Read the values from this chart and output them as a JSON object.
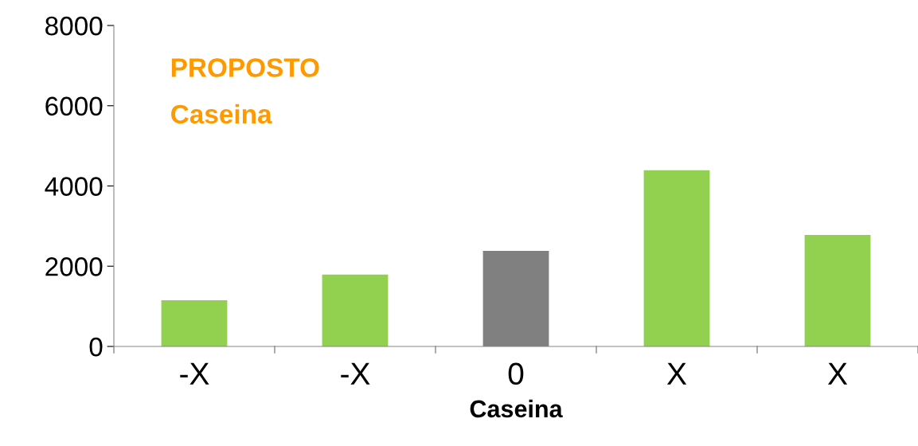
{
  "chart_data": {
    "type": "bar",
    "categories": [
      "-X",
      "-X",
      "0",
      "X",
      "X"
    ],
    "values": [
      1150,
      1790,
      2380,
      4390,
      2780
    ],
    "colors": [
      "#92d050",
      "#92d050",
      "#808080",
      "#92d050",
      "#92d050"
    ],
    "xlabel": "Caseina",
    "ylim": [
      0,
      8000
    ],
    "yticks": [
      0,
      2000,
      4000,
      6000,
      8000
    ],
    "annotations": [
      "PROPOSTO",
      "Caseina"
    ],
    "grid": false,
    "legend": false
  }
}
